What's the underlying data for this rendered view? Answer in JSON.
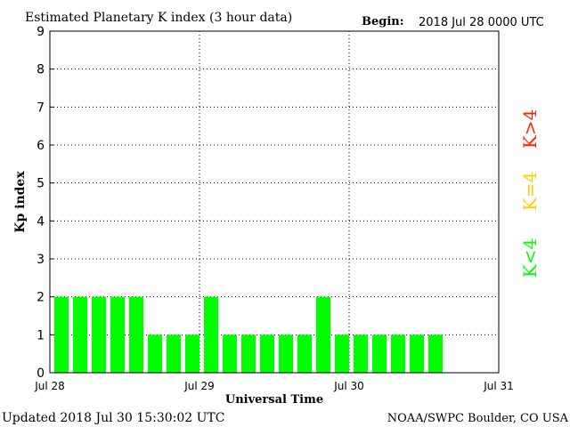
{
  "chart_data": {
    "type": "bar",
    "title": "Estimated Planetary K index (3 hour data)",
    "begin_label": "Begin:",
    "begin_value": "2018 Jul 28 0000 UTC",
    "xlabel": "Universal Time",
    "ylabel": "Kp index",
    "ylim": [
      0,
      9
    ],
    "yticks": [
      "0",
      "1",
      "2",
      "3",
      "4",
      "5",
      "6",
      "7",
      "8",
      "9"
    ],
    "xticks": [
      "Jul 28",
      "Jul 29",
      "Jul 30",
      "Jul 31"
    ],
    "slots_per_day": 8,
    "days": 3,
    "values": [
      2,
      2,
      2,
      2,
      2,
      1,
      1,
      1,
      2,
      1,
      1,
      1,
      1,
      1,
      2,
      1,
      1,
      1,
      1,
      1,
      1
    ],
    "bar_color": "#00ff00",
    "grid": true,
    "legend": [
      {
        "label": "K<4",
        "color": "#00ff00"
      },
      {
        "label": "K=4",
        "color": "#ffcc00"
      },
      {
        "label": "K>4",
        "color": "#ff2200"
      }
    ]
  },
  "footer": {
    "updated": "Updated 2018 Jul 30 15:30:02 UTC",
    "credit": "NOAA/SWPC Boulder, CO USA"
  }
}
